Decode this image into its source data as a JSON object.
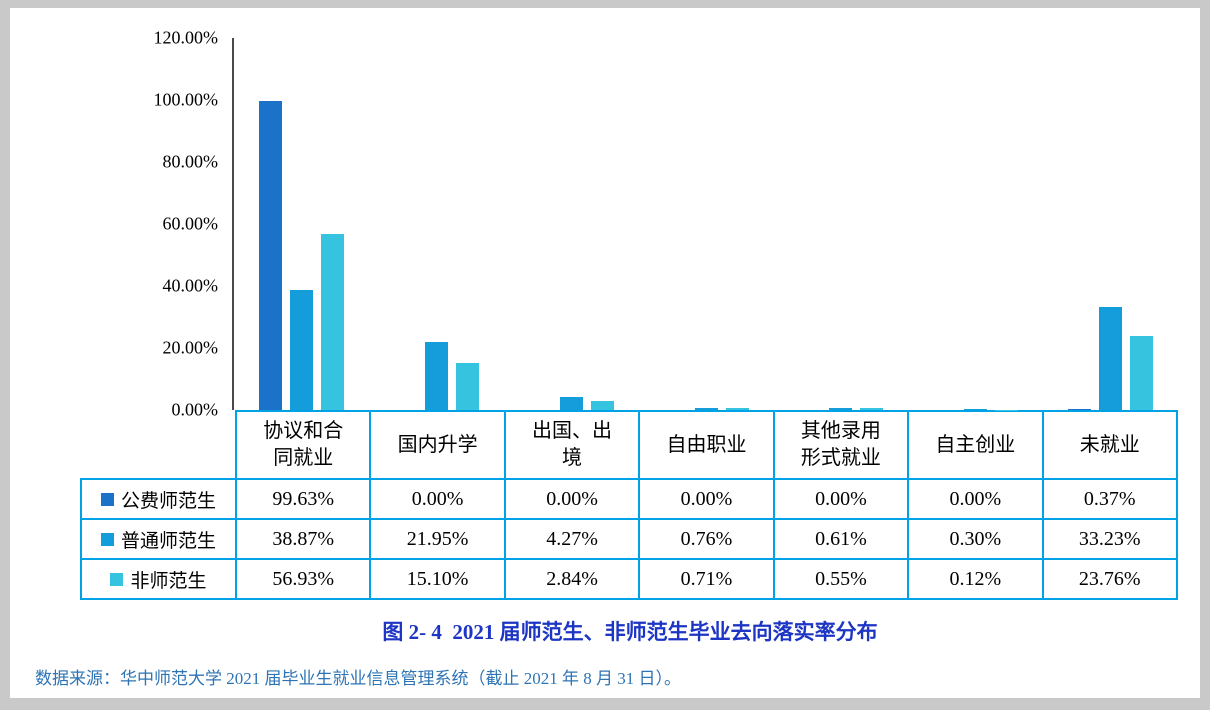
{
  "page": {
    "outer_background": "#c9c9c9",
    "surface": "#ffffff"
  },
  "colors": {
    "table_border": "#00A2E6",
    "axis_line": "#4a4a4a",
    "caption_text": "#1D35C4",
    "source_text": "#2E74B5"
  },
  "chart_data": {
    "type": "bar",
    "title": "图 2- 4  2021 届师范生、非师范生毕业去向落实率分布",
    "categories": [
      "协议和合同就业",
      "国内升学",
      "出国、出境",
      "自由职业",
      "其他录用形式就业",
      "自主创业",
      "未就业"
    ],
    "category_display": [
      "协议和合\n同就业",
      "国内升学",
      "出国、出\n境",
      "自由职业",
      "其他录用\n形式就业",
      "自主创业",
      "未就业"
    ],
    "series": [
      {
        "name": "公费师范生",
        "color": "#1A73C8",
        "values": [
          99.63,
          0.0,
          0.0,
          0.0,
          0.0,
          0.0,
          0.37
        ]
      },
      {
        "name": "普通师范生",
        "color": "#149CDB",
        "values": [
          38.87,
          21.95,
          4.27,
          0.76,
          0.61,
          0.3,
          33.23
        ]
      },
      {
        "name": "非师范生",
        "color": "#36C3DF",
        "values": [
          56.93,
          15.1,
          2.84,
          0.71,
          0.55,
          0.12,
          23.76
        ]
      }
    ],
    "y_axis": {
      "min": 0,
      "max": 120,
      "step": 20,
      "tick_labels": [
        "120.00%",
        "100.00%",
        "80.00%",
        "60.00%",
        "40.00%",
        "20.00%",
        "0.00%"
      ]
    },
    "value_suffix": "%",
    "grid": false,
    "legend_position": "table-row-keys"
  },
  "caption": "图 2- 4  2021 届师范生、非师范生毕业去向落实率分布",
  "source": "数据来源：华中师范大学 2021 届毕业生就业信息管理系统（截止 2021 年 8 月 31 日）。"
}
